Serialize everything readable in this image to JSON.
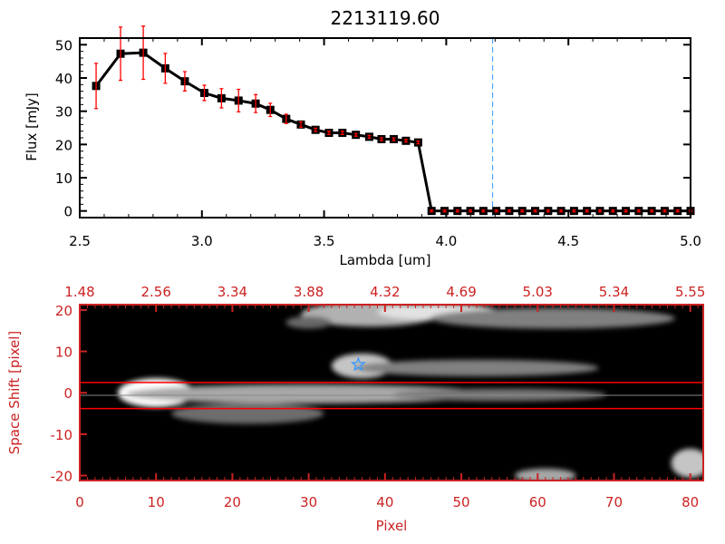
{
  "chart_data": [
    {
      "type": "line",
      "title": "2213119.60",
      "xlabel": "Lambda [um]",
      "ylabel": "Flux [mJy]",
      "xlim": [
        2.5,
        5.0
      ],
      "ylim": [
        -2,
        52
      ],
      "xticks": [
        "2.5",
        "3.0",
        "3.5",
        "4.0",
        "4.5",
        "5.0"
      ],
      "xtick_values": [
        2.5,
        3.0,
        3.5,
        4.0,
        4.5,
        5.0
      ],
      "yticks": [
        "0",
        "10",
        "20",
        "30",
        "40",
        "50"
      ],
      "ytick_values": [
        0,
        10,
        20,
        30,
        40,
        50
      ],
      "series": [
        {
          "name": "flux",
          "color": "#000000",
          "errcolor": "#ff0000",
          "x": [
            2.567,
            2.667,
            2.76,
            2.85,
            2.93,
            3.01,
            3.08,
            3.15,
            3.22,
            3.28,
            3.345,
            3.405,
            3.465,
            3.52,
            3.575,
            3.63,
            3.685,
            3.735,
            3.785,
            3.835,
            3.885,
            3.94,
            3.993,
            4.046,
            4.099,
            4.152,
            4.205,
            4.258,
            4.311,
            4.364,
            4.417,
            4.47,
            4.523,
            4.576,
            4.629,
            4.682,
            4.735,
            4.788,
            4.841,
            4.894,
            4.947,
            5.0
          ],
          "y": [
            37.6,
            47.3,
            47.6,
            42.9,
            39.0,
            35.5,
            33.9,
            33.2,
            32.3,
            30.4,
            27.7,
            26.0,
            24.4,
            23.5,
            23.5,
            22.9,
            22.3,
            21.6,
            21.6,
            21.1,
            20.6,
            0,
            0,
            0,
            0,
            0,
            0,
            0,
            0,
            0,
            0,
            0,
            0,
            0,
            0,
            0,
            0,
            0,
            0,
            0,
            0,
            0
          ],
          "err": [
            6.8,
            8.0,
            8.0,
            4.5,
            2.9,
            2.3,
            2.9,
            3.4,
            2.7,
            2.0,
            1.4,
            0.8,
            0.5,
            0.5,
            0.5,
            0.4,
            0.4,
            0.4,
            0.4,
            0.4,
            0.4,
            0.3,
            0.3,
            0.3,
            0.3,
            0.3,
            0.3,
            0.3,
            0.3,
            0.3,
            0.3,
            0.3,
            0.3,
            0.3,
            0.3,
            0.3,
            0.3,
            0.3,
            0.3,
            0.3,
            0.3,
            0.3
          ]
        }
      ],
      "vline": {
        "x": 4.19,
        "color": "#3399ff",
        "style": "dashed"
      },
      "hline": {
        "y": 0,
        "color": "#ff0000",
        "style": "dashed"
      }
    },
    {
      "type": "heatmap",
      "xlabel": "Pixel",
      "ylabel": "Space Shift [pixel]",
      "xlim": [
        0,
        81.7
      ],
      "ylim": [
        -21.2,
        21.3
      ],
      "xticks": [
        "0",
        "10",
        "20",
        "30",
        "40",
        "50",
        "60",
        "70",
        "80"
      ],
      "xtick_values": [
        0,
        10,
        20,
        30,
        40,
        50,
        60,
        70,
        80
      ],
      "top_xticks": [
        "1.48",
        "2.56",
        "3.34",
        "3.88",
        "4.32",
        "4.69",
        "5.03",
        "5.34",
        "5.55"
      ],
      "yticks": [
        "20",
        "10",
        "0",
        "-10",
        "-20"
      ],
      "ytick_values": [
        20,
        10,
        0,
        -10,
        -20
      ],
      "axis_color": "#cc2222",
      "red_lines_y": [
        2.5,
        -3.8
      ],
      "center_line_y": -0.6,
      "star": {
        "x": 36.5,
        "y": 6.8,
        "color": "#3399ff"
      },
      "blobs": [
        {
          "x": 10,
          "y": 0,
          "rx": 5,
          "ry": 3.5,
          "v": 1.0
        },
        {
          "x": 30,
          "y": -0.3,
          "rx": 24,
          "ry": 2.3,
          "v": 0.55
        },
        {
          "x": 55,
          "y": -0.5,
          "rx": 14,
          "ry": 1.5,
          "v": 0.3
        },
        {
          "x": 37,
          "y": 6.5,
          "rx": 4,
          "ry": 3,
          "v": 0.7
        },
        {
          "x": 52,
          "y": 6,
          "rx": 16,
          "ry": 2,
          "v": 0.35
        },
        {
          "x": 38,
          "y": 19,
          "rx": 9,
          "ry": 3,
          "v": 0.6
        },
        {
          "x": 47,
          "y": 19.5,
          "rx": 8,
          "ry": 2,
          "v": 0.85
        },
        {
          "x": 62,
          "y": 18,
          "rx": 16,
          "ry": 2.5,
          "v": 0.35
        },
        {
          "x": 30,
          "y": 17,
          "rx": 3,
          "ry": 1.5,
          "v": 0.22
        },
        {
          "x": 61,
          "y": -20,
          "rx": 4,
          "ry": 1.7,
          "v": 0.55
        },
        {
          "x": 80,
          "y": -17,
          "rx": 2.5,
          "ry": 3.5,
          "v": 0.7
        },
        {
          "x": 22,
          "y": -5,
          "rx": 10,
          "ry": 2.5,
          "v": 0.25
        }
      ]
    }
  ]
}
